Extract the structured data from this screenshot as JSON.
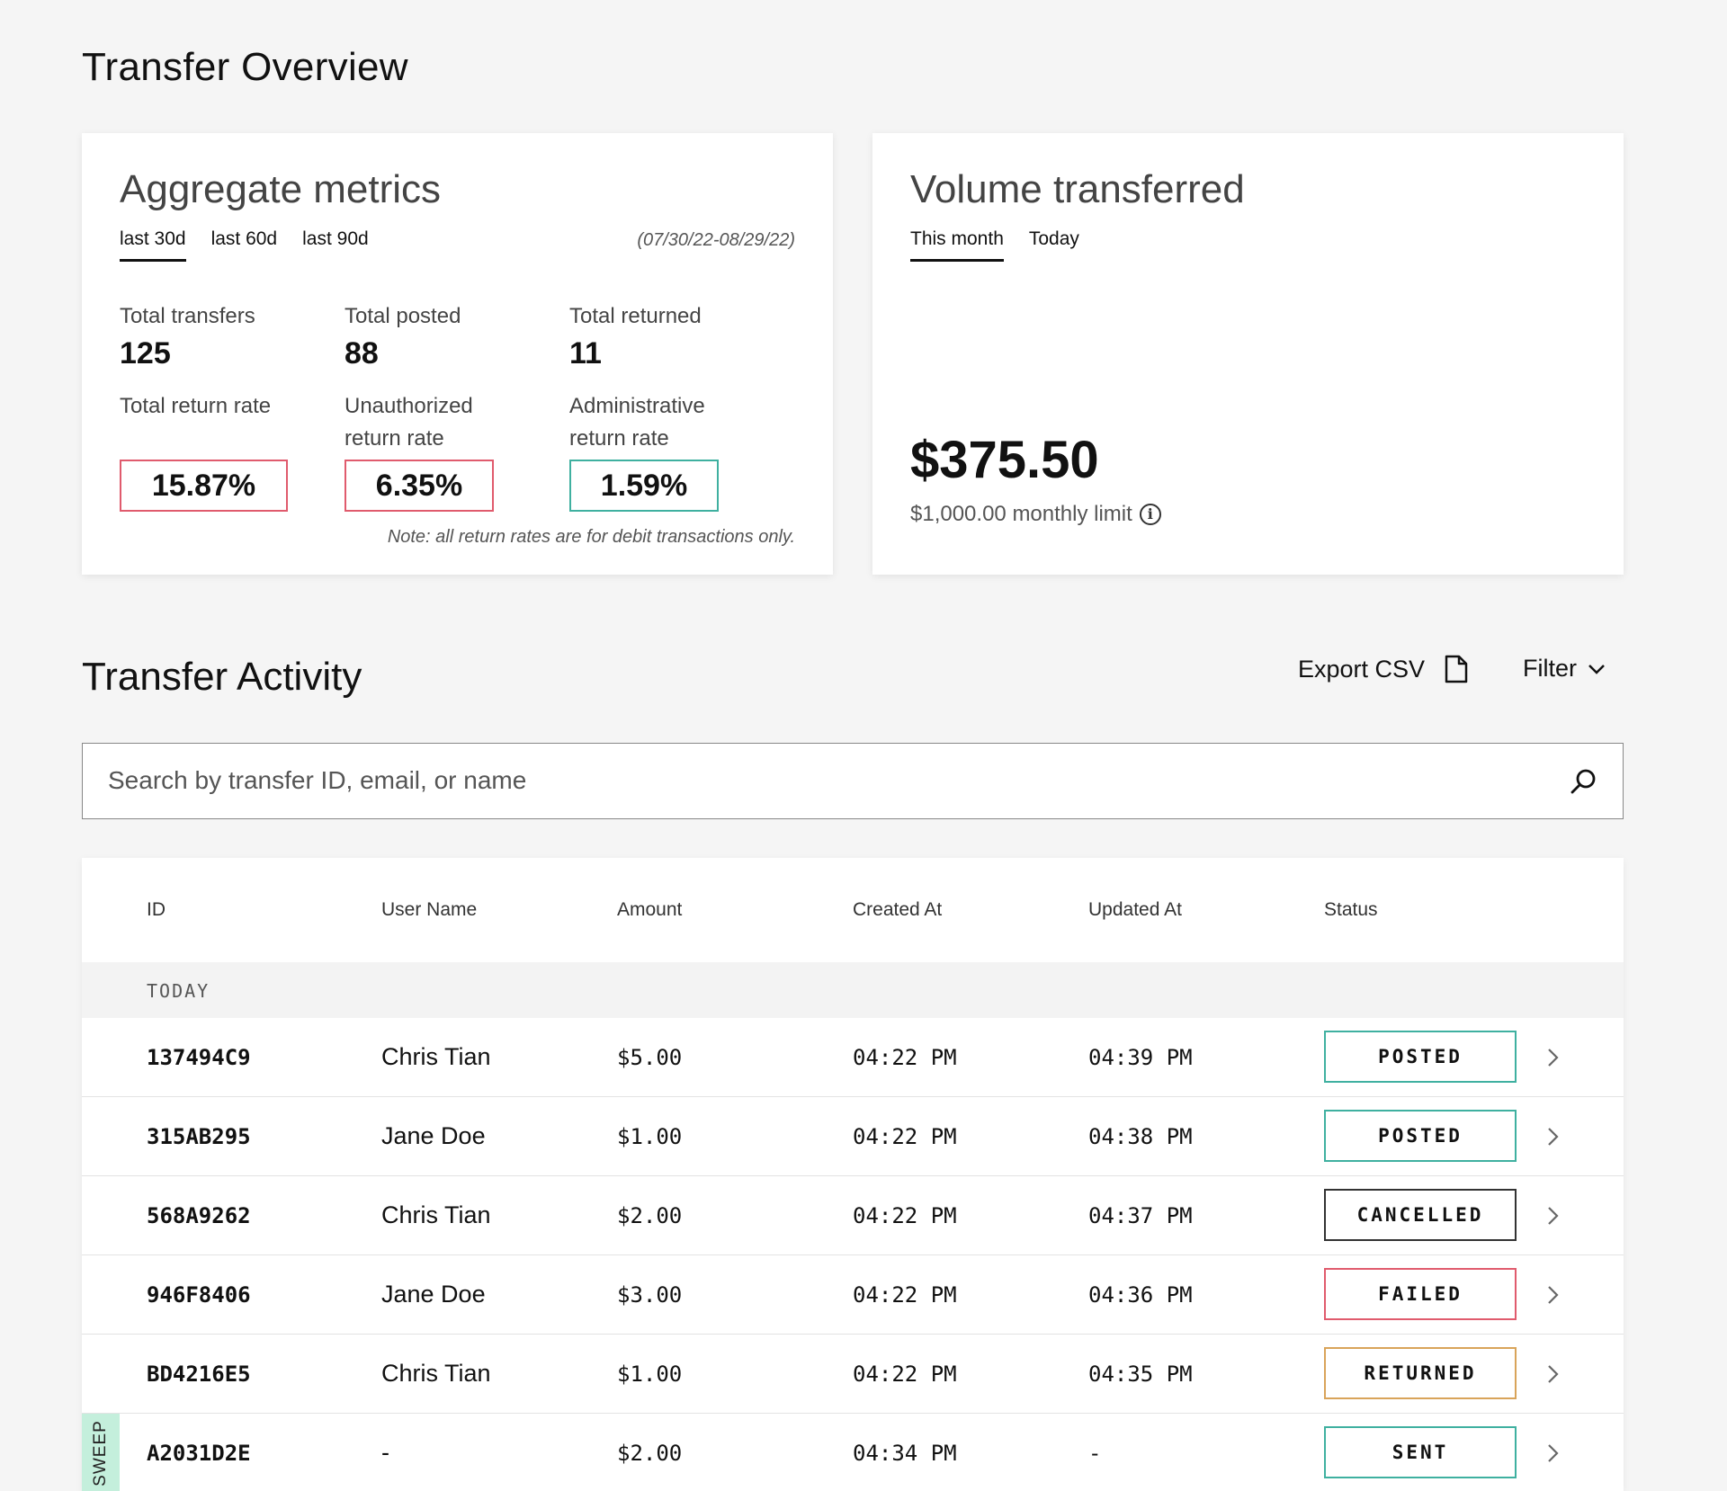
{
  "overview": {
    "title": "Transfer Overview"
  },
  "aggregate": {
    "title": "Aggregate metrics",
    "tabs": [
      "last 30d",
      "last 60d",
      "last 90d"
    ],
    "active_tab": "last 30d",
    "date_range": "(07/30/22-08/29/22)",
    "total_transfers_label": "Total transfers",
    "total_transfers": "125",
    "total_posted_label": "Total posted",
    "total_posted": "88",
    "total_returned_label": "Total returned",
    "total_returned": "11",
    "total_return_rate_label": "Total return rate",
    "total_return_rate": "15.87%",
    "unauth_rate_label_1": "Unauthorized",
    "unauth_rate_label_2": "return rate",
    "unauth_rate": "6.35%",
    "admin_rate_label_1": "Administrative",
    "admin_rate_label_2": "return rate",
    "admin_rate": "1.59%",
    "note": "Note: all return rates are for debit transactions only."
  },
  "volume": {
    "title": "Volume transferred",
    "tabs": [
      "This month",
      "Today"
    ],
    "active_tab": "This month",
    "amount": "$375.50",
    "limit": "$1,000.00 monthly limit",
    "info_icon": "info-icon"
  },
  "activity": {
    "title": "Transfer Activity",
    "export_label": "Export CSV",
    "filter_label": "Filter",
    "search_placeholder": "Search by transfer ID, email, or name",
    "columns": [
      "ID",
      "User Name",
      "Amount",
      "Created At",
      "Updated At",
      "Status"
    ],
    "group_label": "TODAY",
    "rows": [
      {
        "id": "137494C9",
        "user": "Chris Tian",
        "amount": "$5.00",
        "created": "04:22 PM",
        "updated": "04:39 PM",
        "status": "POSTED",
        "status_color": "#3fb0a0",
        "tag": ""
      },
      {
        "id": "315AB295",
        "user": "Jane Doe",
        "amount": "$1.00",
        "created": "04:22 PM",
        "updated": "04:38 PM",
        "status": "POSTED",
        "status_color": "#3fb0a0",
        "tag": ""
      },
      {
        "id": "568A9262",
        "user": "Chris Tian",
        "amount": "$2.00",
        "created": "04:22 PM",
        "updated": "04:37 PM",
        "status": "CANCELLED",
        "status_color": "#333333",
        "tag": ""
      },
      {
        "id": "946F8406",
        "user": "Jane Doe",
        "amount": "$3.00",
        "created": "04:22 PM",
        "updated": "04:36 PM",
        "status": "FAILED",
        "status_color": "#e05b6d",
        "tag": ""
      },
      {
        "id": "BD4216E5",
        "user": "Chris Tian",
        "amount": "$1.00",
        "created": "04:22 PM",
        "updated": "04:35 PM",
        "status": "RETURNED",
        "status_color": "#d9a45a",
        "tag": ""
      },
      {
        "id": "A2031D2E",
        "user": "-",
        "amount": "$2.00",
        "created": "04:34 PM",
        "updated": "-",
        "status": "SENT",
        "status_color": "#3fb0a0",
        "tag": "SWEEP"
      }
    ]
  }
}
